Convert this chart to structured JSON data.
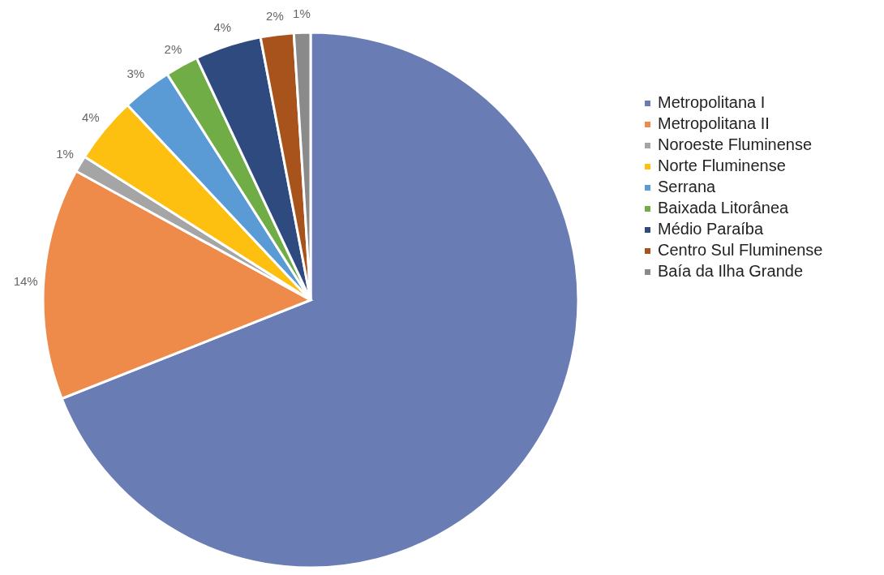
{
  "chart_data": {
    "type": "pie",
    "categories": [
      "Metropolitana I",
      "Metropolitana II",
      "Noroeste Fluminense",
      "Norte Fluminense",
      "Serrana",
      "Baixada Litorânea",
      "Médio Paraíba",
      "Centro Sul Fluminense",
      "Baía da Ilha Grande"
    ],
    "values": [
      69,
      14,
      1,
      4,
      3,
      2,
      4,
      2,
      1
    ],
    "value_labels": [
      null,
      "14%",
      "1%",
      "4%",
      "3%",
      "2%",
      "4%",
      "2%",
      "1%"
    ],
    "colors": [
      "#6a7cb4",
      "#ee8a4a",
      "#a5a5a5",
      "#fdc010",
      "#5b9bd5",
      "#70ad47",
      "#2e4a7e",
      "#a8521c",
      "#8a8a8a"
    ],
    "legend": "right"
  }
}
